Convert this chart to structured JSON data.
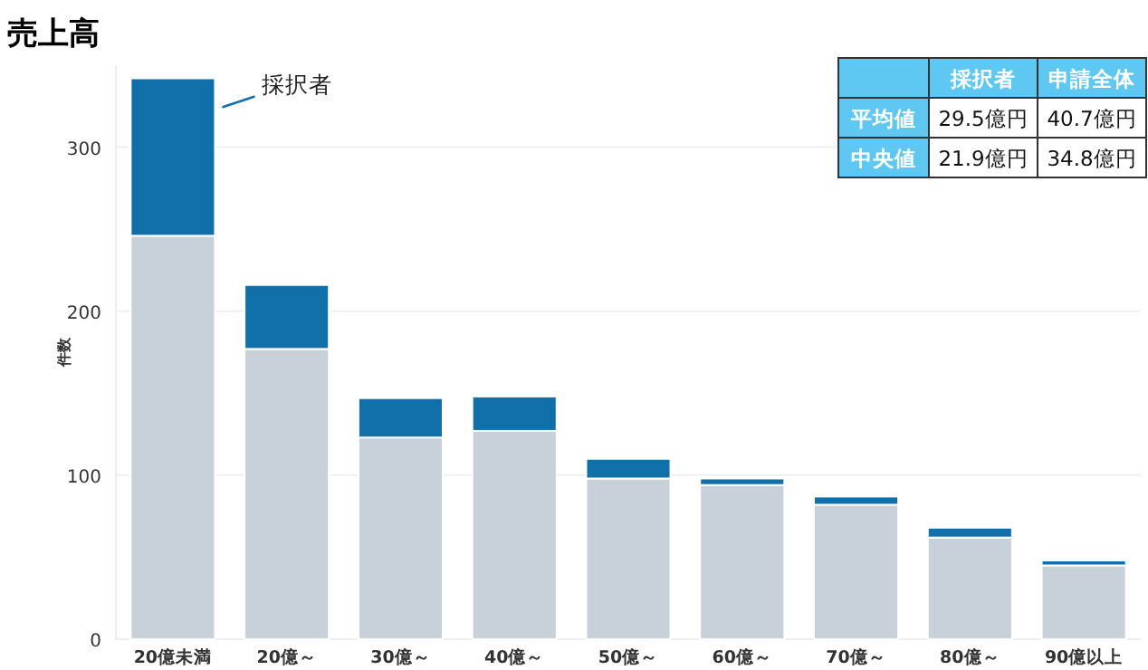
{
  "chart_data": {
    "type": "bar",
    "title": "売上高",
    "ylabel": "件数",
    "categories": [
      "20億未満",
      "20億～",
      "30億～",
      "40億～",
      "50億～",
      "60億～",
      "70億～",
      "80億～",
      "90億以上"
    ],
    "stacked": true,
    "series": [
      {
        "color": "#c8d0da",
        "values": [
          246,
          177,
          123,
          127,
          98,
          94,
          82,
          62,
          45
        ]
      },
      {
        "name": "採択者",
        "color": "#1170aa",
        "values": [
          96,
          39,
          24,
          21,
          12,
          4,
          5,
          6,
          3
        ]
      }
    ],
    "ylim": [
      0,
      350
    ],
    "yticks": [
      0,
      100,
      200,
      300
    ],
    "grid": "y",
    "annotations": [
      "採択者",
      "申請全体",
      "平均値",
      "29.5億円",
      "40.7億円",
      "中央値",
      "21.9億円",
      "34.8億円"
    ]
  }
}
